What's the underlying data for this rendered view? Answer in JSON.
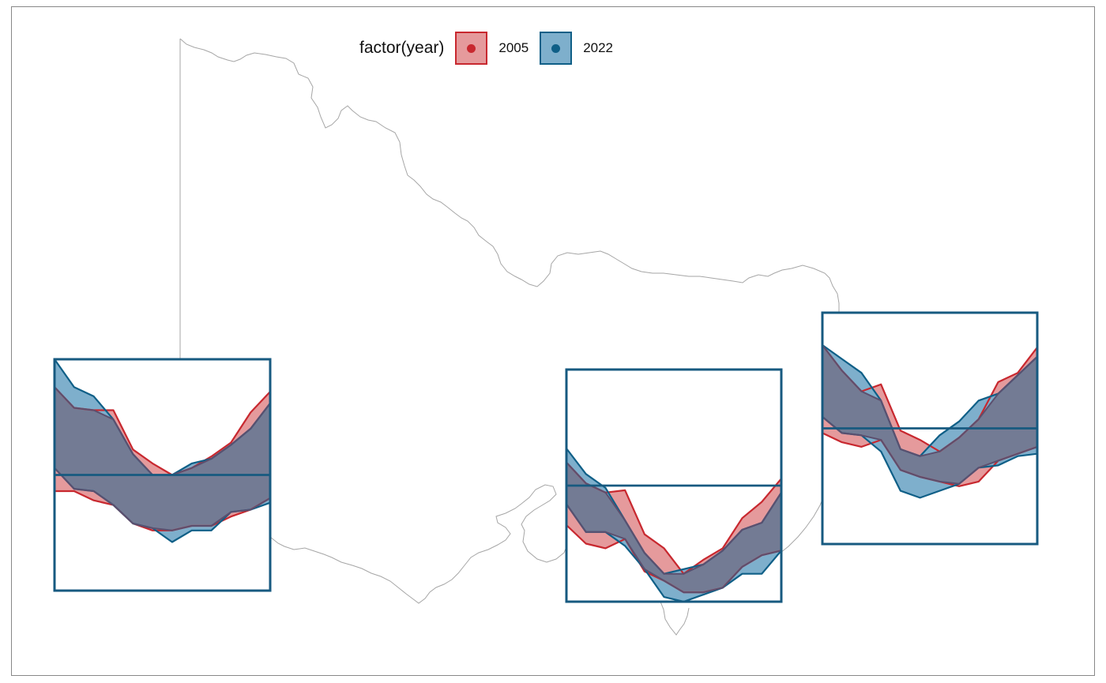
{
  "legend": {
    "title": "factor(year)",
    "items": [
      {
        "label": "2005",
        "fill": "#e59a9c",
        "stroke": "#c8282f",
        "dot": "#c8282f"
      },
      {
        "label": "2022",
        "fill": "#7eafcc",
        "stroke": "#0f5f87",
        "dot": "#0f5f87"
      }
    ]
  },
  "colors": {
    "map_outline": "#a6a6a6",
    "overlap": "#737b94",
    "overlap_stroke": "#5c4f6e",
    "inset_border": "#175a80",
    "frame": "#888888"
  },
  "chart_data": {
    "type": "area",
    "description_type": "map with inset ribbon glyphs",
    "series_names": [
      "2005",
      "2022"
    ],
    "months": [
      1,
      2,
      3,
      4,
      5,
      6,
      7,
      8,
      9,
      10,
      11,
      12
    ],
    "insets": [
      {
        "id": "west",
        "ylim": [
          0,
          1
        ],
        "reference_line": 0.5,
        "series": [
          {
            "name": "2005",
            "upper": [
              0.88,
              0.79,
              0.78,
              0.78,
              0.61,
              0.55,
              0.5,
              0.53,
              0.58,
              0.64,
              0.77,
              0.86
            ],
            "lower": [
              0.43,
              0.43,
              0.39,
              0.37,
              0.29,
              0.26,
              0.26,
              0.28,
              0.28,
              0.32,
              0.35,
              0.4
            ]
          },
          {
            "name": "2022",
            "upper": [
              1.0,
              0.88,
              0.84,
              0.74,
              0.59,
              0.5,
              0.5,
              0.55,
              0.57,
              0.63,
              0.7,
              0.81
            ],
            "lower": [
              0.53,
              0.44,
              0.43,
              0.37,
              0.29,
              0.27,
              0.21,
              0.26,
              0.26,
              0.34,
              0.35,
              0.38
            ]
          }
        ]
      },
      {
        "id": "central",
        "ylim": [
          0,
          1
        ],
        "reference_line": 0.5,
        "series": [
          {
            "name": "2005",
            "upper": [
              0.6,
              0.51,
              0.47,
              0.48,
              0.29,
              0.23,
              0.12,
              0.18,
              0.23,
              0.36,
              0.43,
              0.53
            ],
            "lower": [
              0.33,
              0.25,
              0.23,
              0.27,
              0.13,
              0.09,
              0.04,
              0.04,
              0.06,
              0.15,
              0.2,
              0.22
            ]
          },
          {
            "name": "2022",
            "upper": [
              0.66,
              0.55,
              0.49,
              0.35,
              0.21,
              0.12,
              0.14,
              0.16,
              0.22,
              0.31,
              0.34,
              0.47
            ],
            "lower": [
              0.42,
              0.3,
              0.3,
              0.24,
              0.14,
              0.02,
              0.0,
              0.03,
              0.06,
              0.12,
              0.12,
              0.22
            ]
          }
        ]
      },
      {
        "id": "east",
        "ylim": [
          0,
          1
        ],
        "reference_line": 0.5,
        "series": [
          {
            "name": "2005",
            "upper": [
              0.86,
              0.75,
              0.66,
              0.69,
              0.49,
              0.45,
              0.4,
              0.46,
              0.54,
              0.7,
              0.74,
              0.85
            ],
            "lower": [
              0.48,
              0.44,
              0.42,
              0.45,
              0.32,
              0.29,
              0.27,
              0.25,
              0.27,
              0.36,
              0.39,
              0.42
            ]
          },
          {
            "name": "2022",
            "upper": [
              0.86,
              0.8,
              0.74,
              0.62,
              0.41,
              0.38,
              0.47,
              0.53,
              0.62,
              0.65,
              0.73,
              0.81
            ],
            "lower": [
              0.55,
              0.48,
              0.47,
              0.4,
              0.23,
              0.2,
              0.23,
              0.26,
              0.33,
              0.34,
              0.38,
              0.39
            ]
          }
        ]
      }
    ]
  }
}
